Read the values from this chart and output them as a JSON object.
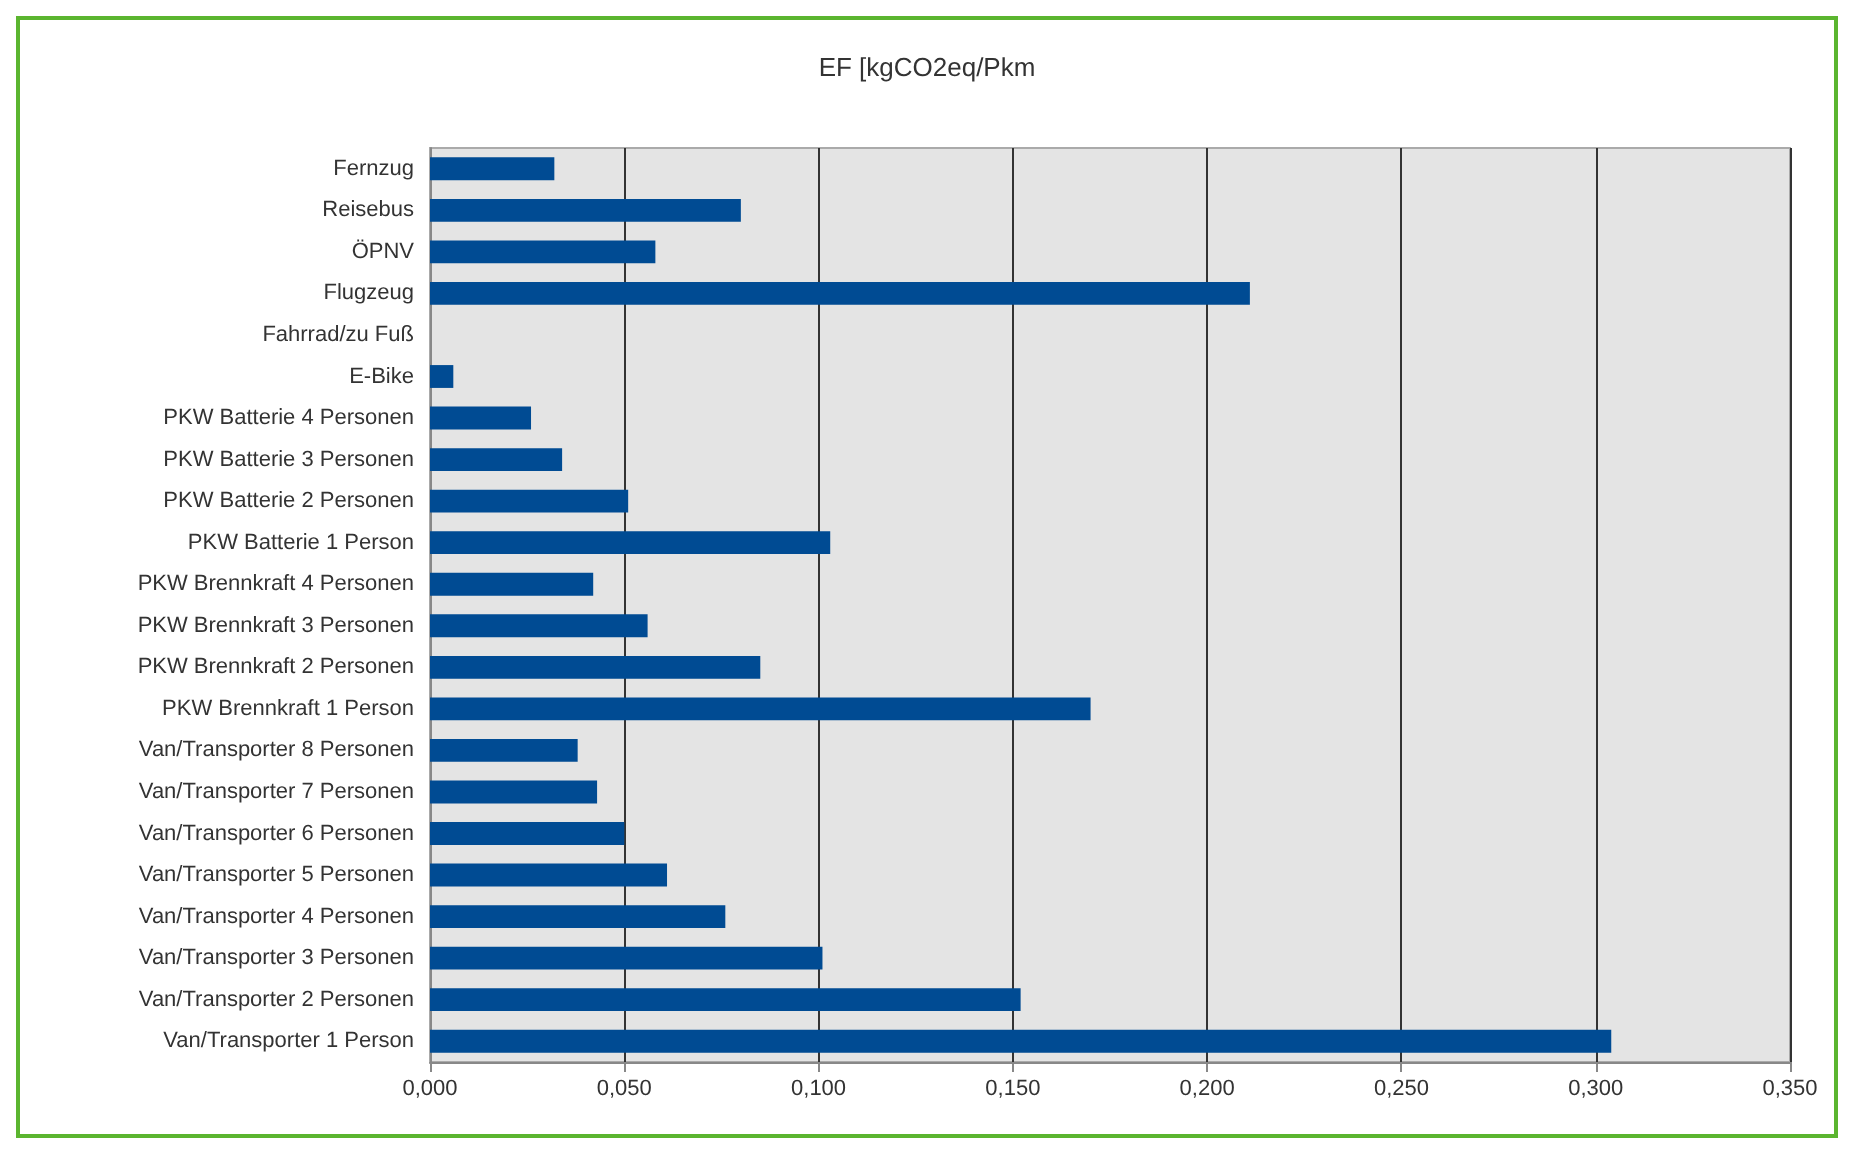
{
  "chart_data": {
    "type": "bar",
    "orientation": "horizontal",
    "title": "EF [kgCO2eq/Pkm",
    "categories": [
      "Fernzug",
      "Reisebus",
      "ÖPNV",
      "Flugzeug",
      "Fahrrad/zu Fuß",
      "E-Bike",
      "PKW Batterie 4 Personen",
      "PKW Batterie 3 Personen",
      "PKW Batterie 2 Personen",
      "PKW Batterie 1 Person",
      "PKW Brennkraft 4 Personen",
      "PKW Brennkraft 3 Personen",
      "PKW Brennkraft 2 Personen",
      "PKW Brennkraft 1 Person",
      "Van/Transporter 8 Personen",
      "Van/Transporter 7 Personen",
      "Van/Transporter 6 Personen",
      "Van/Transporter 5 Personen",
      "Van/Transporter 4 Personen",
      "Van/Transporter 3 Personen",
      "Van/Transporter 2 Personen",
      "Van/Transporter 1 Person"
    ],
    "values": [
      0.032,
      0.08,
      0.058,
      0.211,
      0,
      0.006,
      0.026,
      0.034,
      0.051,
      0.103,
      0.042,
      0.056,
      0.085,
      0.17,
      0.038,
      0.043,
      0.05,
      0.061,
      0.076,
      0.101,
      0.152,
      0.304
    ],
    "color": "#004b93",
    "xlim": [
      0,
      0.35
    ],
    "xticks": [
      {
        "value": 0,
        "label": "0,000"
      },
      {
        "value": 0.05,
        "label": "0,050"
      },
      {
        "value": 0.1,
        "label": "0,100"
      },
      {
        "value": 0.15,
        "label": "0,150"
      },
      {
        "value": 0.2,
        "label": "0,200"
      },
      {
        "value": 0.25,
        "label": "0,250"
      },
      {
        "value": 0.3,
        "label": "0,300"
      },
      {
        "value": 0.35,
        "label": "0,350"
      }
    ],
    "grid": "x"
  }
}
